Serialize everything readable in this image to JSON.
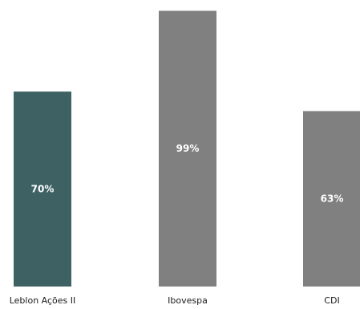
{
  "chart_data": {
    "type": "bar",
    "title": "",
    "xlabel": "",
    "ylabel": "",
    "categories": [
      "Leblon Ações II",
      "Ibovespa",
      "CDI"
    ],
    "values": [
      70,
      99,
      63
    ],
    "value_labels": [
      "70%",
      "99%",
      "63%"
    ],
    "colors": [
      "#3e6264",
      "#808080",
      "#808080"
    ],
    "ylim": [
      0,
      100
    ],
    "grid": false,
    "legend": "none"
  }
}
